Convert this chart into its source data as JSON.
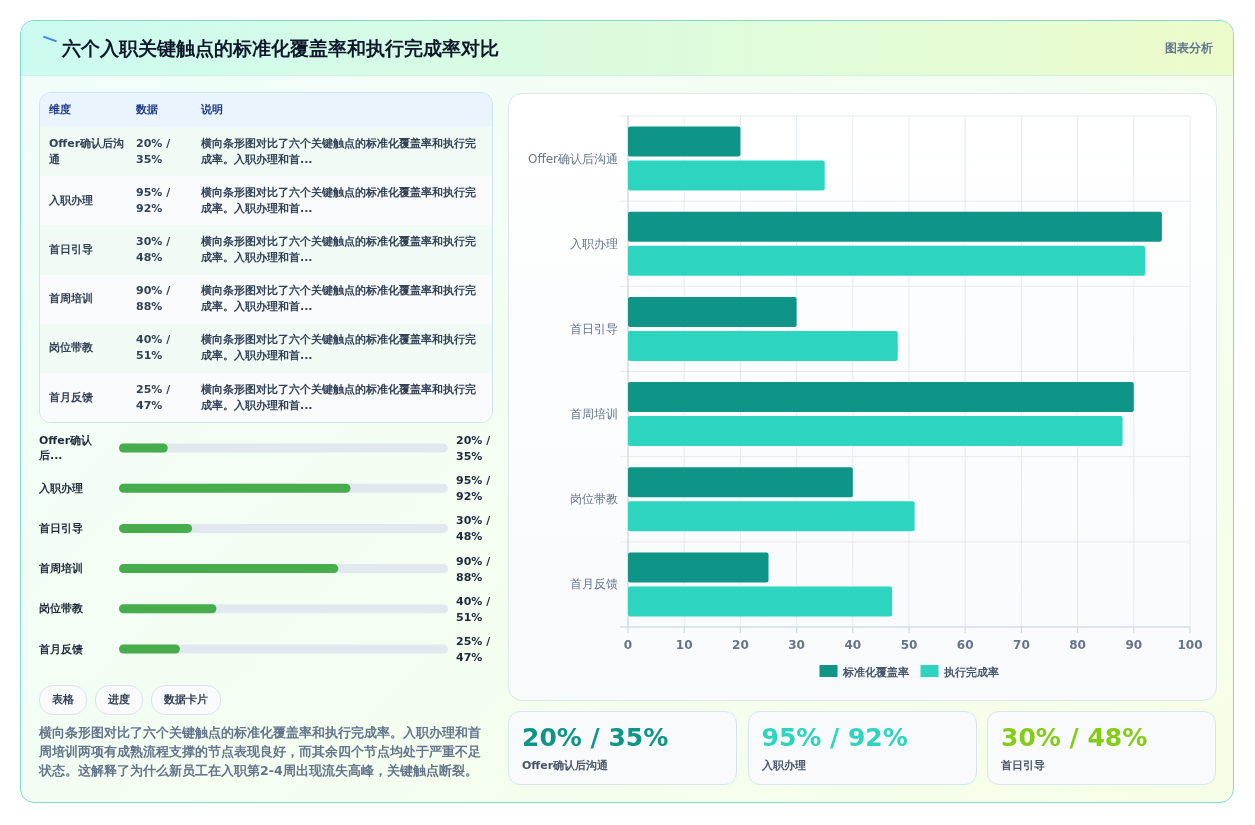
{
  "chart_data": [
    {
      "type": "other",
      "title": "六个入职关键触点的标准化覆盖率和执行完成率对比",
      "annotations": [
        "图表分析"
      ]
    },
    {
      "type": "other",
      "annotations": [
        "维度",
        "数据",
        "说明",
        "Offer确认后沟通",
        "20% / 35%",
        "横向条形图对比了六个关键触点的标准化覆盖率和执行完成率。入职办理和首...",
        "入职办理",
        "95% / 92%",
        "横向条形图对比了六个关键触点的标准化覆盖率和执行完成率。入职办理和首...",
        "首日引导",
        "30% / 48%",
        "横向条形图对比了六个关键触点的标准化覆盖率和执行完成率。入职办理和首...",
        "首周培训",
        "90% / 88%",
        "横向条形图对比了六个关键触点的标准化覆盖率和执行完成率。入职办理和首...",
        "岗位带教",
        "40% / 51%",
        "横向条形图对比了六个关键触点的标准化覆盖率和执行完成率。入职办理和首...",
        "首月反馈",
        "25% / 47%",
        "横向条形图对比了六个关键触点的标准化覆盖率和执行完成率。入职办理和首..."
      ]
    },
    {
      "type": "bar",
      "orientation": "horizontal",
      "color": "#47ad4c",
      "xlim": [
        0,
        135
      ],
      "categories": [
        "Offer确认后...",
        "入职办理",
        "首日引导",
        "首周培训",
        "岗位带教",
        "首月反馈"
      ],
      "values": [
        20,
        95,
        30,
        90,
        40,
        25
      ],
      "value_labels": [
        "20% / 35%",
        "95% / 92%",
        "30% / 48%",
        "90% / 88%",
        "40% / 51%",
        "25% / 47%"
      ]
    },
    {
      "type": "other",
      "annotations": [
        "表格",
        "进度",
        "数据卡片",
        "横向条形图对比了六个关键触点的标准化覆盖率和执行完成率。入职办理和首周培训两项有成熟流程支撑的节点表现良好，而其余四个节点均处于严重不足状态。这解释了为什么新员工在入职第2-4周出现流失高峰，关键触点断裂。"
      ]
    },
    {
      "type": "bar",
      "orientation": "horizontal",
      "categories": [
        "Offer确认后沟通",
        "入职办理",
        "首日引导",
        "首周培训",
        "岗位带教",
        "首月反馈"
      ],
      "series": [
        {
          "name": "标准化覆盖率",
          "color": "#0f9488",
          "values": [
            20,
            95,
            30,
            90,
            40,
            25
          ]
        },
        {
          "name": "执行完成率",
          "color": "#2dd4bf",
          "values": [
            35,
            92,
            48,
            88,
            51,
            47
          ]
        }
      ],
      "xlim": [
        0,
        100
      ],
      "xticks": [
        0,
        10,
        20,
        30,
        40,
        50,
        60,
        70,
        80,
        90,
        100
      ],
      "grid": true,
      "legend": "bottom"
    },
    {
      "type": "other",
      "annotations": [
        "20% / 35%",
        "Offer确认后沟通",
        "95% / 92%",
        "入职办理",
        "30% / 48%",
        "首日引导"
      ],
      "colors": [
        "#0f9488",
        "#2dd4bf",
        "#84cc16"
      ]
    }
  ]
}
